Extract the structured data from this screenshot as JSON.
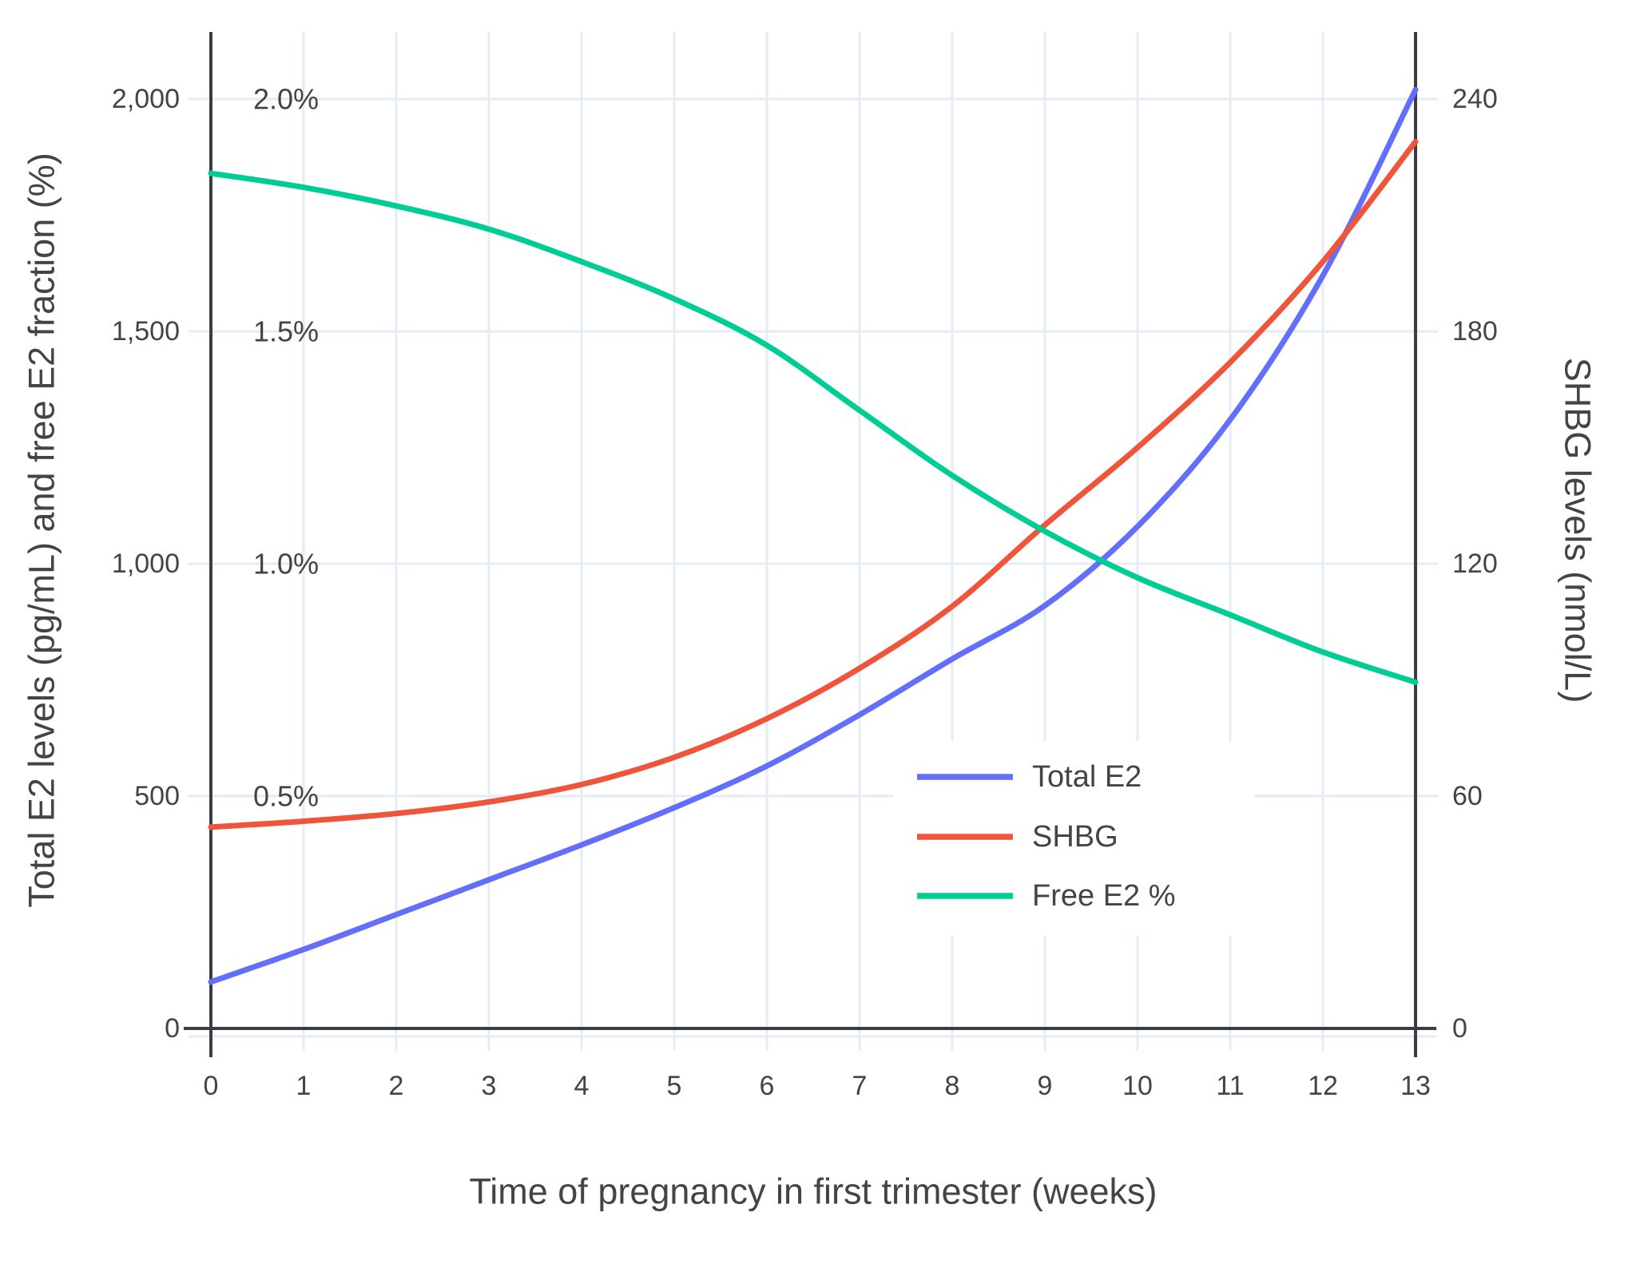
{
  "chart_data": {
    "type": "line",
    "xlabel": "Time of pregnancy in first trimester (weeks)",
    "ylabel_left": "Total E2 levels (pg/mL) and free E2 fraction (%)",
    "ylabel_right": "SHBG levels (nmol/L)",
    "x": [
      0,
      1,
      2,
      3,
      4,
      5,
      6,
      7,
      8,
      9,
      10,
      11,
      12,
      13
    ],
    "x_tick_labels": [
      "0",
      "1",
      "2",
      "3",
      "4",
      "5",
      "6",
      "7",
      "8",
      "9",
      "10",
      "11",
      "12",
      "13"
    ],
    "left_axis": {
      "range": [
        0,
        2150
      ],
      "tick_values": [
        0,
        500,
        1000,
        1500,
        2000
      ],
      "tick_labels": [
        "0",
        "500",
        "1,000",
        "1,500",
        "2,000"
      ]
    },
    "right_axis": {
      "range": [
        0,
        258
      ],
      "tick_values": [
        0,
        60,
        120,
        180,
        240
      ],
      "tick_labels": [
        "0",
        "60",
        "120",
        "180",
        "240"
      ]
    },
    "pct_annotations": [
      {
        "label": "2.0%",
        "left_value": 2000
      },
      {
        "label": "1.5%",
        "left_value": 1500
      },
      {
        "label": "1.0%",
        "left_value": 1000
      },
      {
        "label": "0.5%",
        "left_value": 500
      }
    ],
    "series": [
      {
        "name": "Total E2",
        "axis": "left",
        "color": "#636EFA",
        "values": [
          100,
          170,
          245,
          320,
          395,
          475,
          565,
          675,
          795,
          910,
          1080,
          1310,
          1620,
          2020
        ]
      },
      {
        "name": "SHBG",
        "axis": "right",
        "color": "#EF553B",
        "values": [
          52,
          53.5,
          55.5,
          58.5,
          63,
          70,
          80,
          93,
          109,
          130,
          150,
          172,
          198,
          229
        ]
      },
      {
        "name": "Free E2 %",
        "axis": "pct",
        "color": "#00CC96",
        "values": [
          1.84,
          1.81,
          1.77,
          1.72,
          1.65,
          1.57,
          1.47,
          1.33,
          1.19,
          1.07,
          0.97,
          0.89,
          0.81,
          0.745
        ]
      }
    ],
    "legend": {
      "entries": [
        "Total E2",
        "SHBG",
        "Free E2 %"
      ],
      "position": "inside-right-middle"
    },
    "grid": true
  },
  "colors": {
    "background": "#ffffff",
    "gridline": "#e6ecf6",
    "axis_line": "#3a3d42",
    "text": "#444444",
    "series_blue": "#636EFA",
    "series_red": "#EF553B",
    "series_green": "#00CC96"
  }
}
